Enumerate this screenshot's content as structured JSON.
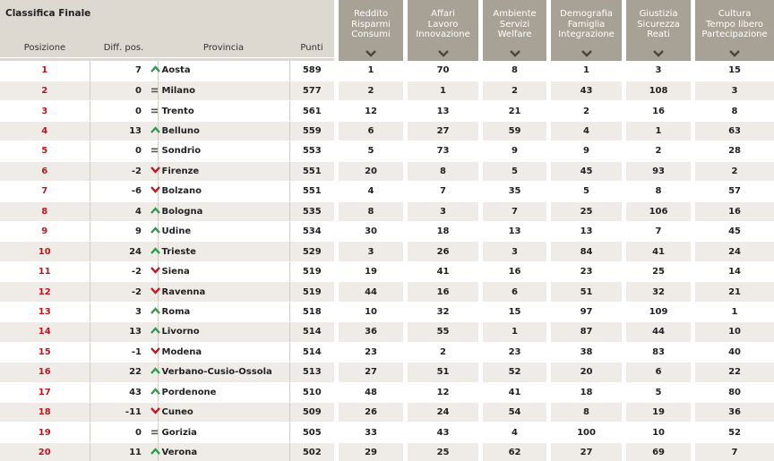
{
  "title": "Classifica Finale",
  "columns": {
    "posizione": "Posizione",
    "diff": "Diff. pos.",
    "provincia": "Provincia",
    "punti": "Punti"
  },
  "categories": [
    {
      "label": "Reddito\nRisparmi\nConsumi"
    },
    {
      "label": "Affari\nLavoro\nInnovazione"
    },
    {
      "label": "Ambiente\nServizi\nWelfare"
    },
    {
      "label": "Demografia\nFamiglia\nIntegrazione"
    },
    {
      "label": "Giustizia\nSicurezza\nReati"
    },
    {
      "label": "Cultura\nTempo libero\nPartecipazione"
    }
  ],
  "colors": {
    "accent": "#c0151e",
    "up": "#2e9b4c",
    "header": "#a8a195",
    "stripe": "#efece7"
  },
  "rows": [
    {
      "pos": "1",
      "diff": "7",
      "trend": "up",
      "provincia": "Aosta",
      "punti": "589",
      "v": [
        "1",
        "70",
        "8",
        "1",
        "3",
        "15"
      ]
    },
    {
      "pos": "2",
      "diff": "0",
      "trend": "eq",
      "provincia": "Milano",
      "punti": "577",
      "v": [
        "2",
        "1",
        "2",
        "43",
        "108",
        "3"
      ]
    },
    {
      "pos": "3",
      "diff": "0",
      "trend": "eq",
      "provincia": "Trento",
      "punti": "561",
      "v": [
        "12",
        "13",
        "21",
        "2",
        "16",
        "8"
      ]
    },
    {
      "pos": "4",
      "diff": "13",
      "trend": "up",
      "provincia": "Belluno",
      "punti": "559",
      "v": [
        "6",
        "27",
        "59",
        "4",
        "1",
        "63"
      ]
    },
    {
      "pos": "5",
      "diff": "0",
      "trend": "eq",
      "provincia": "Sondrio",
      "punti": "553",
      "v": [
        "5",
        "73",
        "9",
        "9",
        "2",
        "28"
      ]
    },
    {
      "pos": "6",
      "diff": "-2",
      "trend": "down",
      "provincia": "Firenze",
      "punti": "551",
      "v": [
        "20",
        "8",
        "5",
        "45",
        "93",
        "2"
      ]
    },
    {
      "pos": "7",
      "diff": "-6",
      "trend": "down",
      "provincia": "Bolzano",
      "punti": "551",
      "v": [
        "4",
        "7",
        "35",
        "5",
        "8",
        "57"
      ]
    },
    {
      "pos": "8",
      "diff": "4",
      "trend": "up",
      "provincia": "Bologna",
      "punti": "535",
      "v": [
        "8",
        "3",
        "7",
        "25",
        "106",
        "16"
      ]
    },
    {
      "pos": "9",
      "diff": "9",
      "trend": "up",
      "provincia": "Udine",
      "punti": "534",
      "v": [
        "30",
        "18",
        "13",
        "13",
        "7",
        "45"
      ]
    },
    {
      "pos": "10",
      "diff": "24",
      "trend": "up",
      "provincia": "Trieste",
      "punti": "529",
      "v": [
        "3",
        "26",
        "3",
        "84",
        "41",
        "24"
      ]
    },
    {
      "pos": "11",
      "diff": "-2",
      "trend": "down",
      "provincia": "Siena",
      "punti": "519",
      "v": [
        "19",
        "41",
        "16",
        "23",
        "25",
        "14"
      ]
    },
    {
      "pos": "12",
      "diff": "-2",
      "trend": "down",
      "provincia": "Ravenna",
      "punti": "519",
      "v": [
        "44",
        "16",
        "6",
        "51",
        "32",
        "21"
      ]
    },
    {
      "pos": "13",
      "diff": "3",
      "trend": "up",
      "provincia": "Roma",
      "punti": "518",
      "v": [
        "10",
        "32",
        "15",
        "97",
        "109",
        "1"
      ]
    },
    {
      "pos": "14",
      "diff": "13",
      "trend": "up",
      "provincia": "Livorno",
      "punti": "514",
      "v": [
        "36",
        "55",
        "1",
        "87",
        "44",
        "10"
      ]
    },
    {
      "pos": "15",
      "diff": "-1",
      "trend": "down",
      "provincia": "Modena",
      "punti": "514",
      "v": [
        "23",
        "2",
        "23",
        "38",
        "83",
        "40"
      ]
    },
    {
      "pos": "16",
      "diff": "22",
      "trend": "up",
      "provincia": "Verbano-Cusio-Ossola",
      "punti": "513",
      "v": [
        "27",
        "51",
        "52",
        "20",
        "6",
        "22"
      ]
    },
    {
      "pos": "17",
      "diff": "43",
      "trend": "up",
      "provincia": "Pordenone",
      "punti": "510",
      "v": [
        "48",
        "12",
        "41",
        "18",
        "5",
        "80"
      ]
    },
    {
      "pos": "18",
      "diff": "-11",
      "trend": "down",
      "provincia": "Cuneo",
      "punti": "509",
      "v": [
        "26",
        "24",
        "54",
        "8",
        "19",
        "36"
      ]
    },
    {
      "pos": "19",
      "diff": "0",
      "trend": "eq",
      "provincia": "Gorizia",
      "punti": "505",
      "v": [
        "33",
        "43",
        "4",
        "100",
        "10",
        "52"
      ]
    },
    {
      "pos": "20",
      "diff": "11",
      "trend": "up",
      "provincia": "Verona",
      "punti": "502",
      "v": [
        "29",
        "25",
        "62",
        "27",
        "69",
        "7"
      ]
    }
  ]
}
